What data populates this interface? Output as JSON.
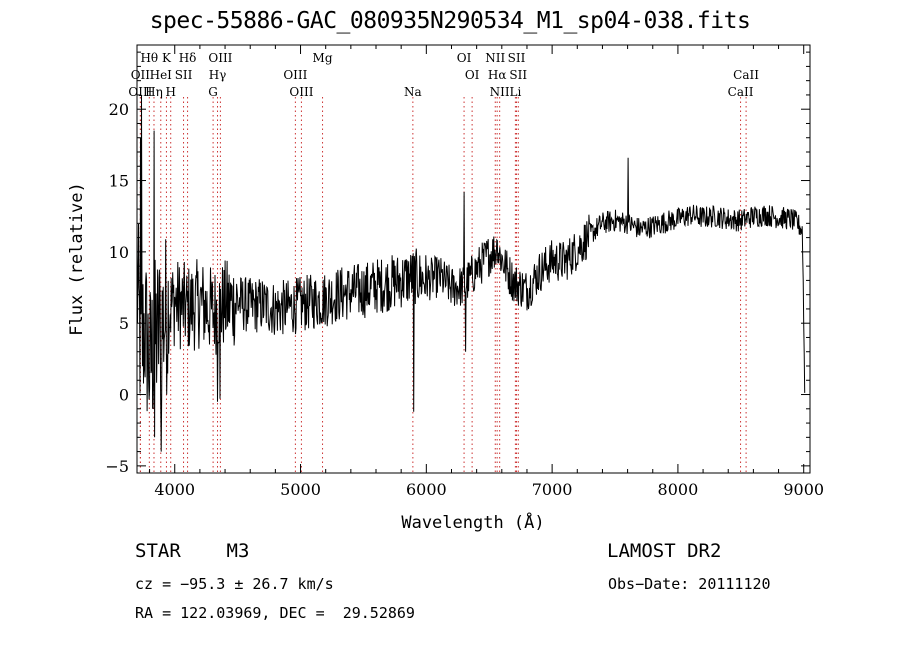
{
  "title": "spec-55886-GAC_080935N290534_M1_sp04-038.fits",
  "chart_data": {
    "type": "line",
    "xlabel": "Wavelength (Å)",
    "ylabel": "Flux (relative)",
    "xlim": [
      3700,
      9050
    ],
    "ylim": [
      -5.5,
      24.5
    ],
    "xticks": [
      4000,
      5000,
      6000,
      7000,
      8000,
      9000
    ],
    "yticks": [
      -5,
      0,
      5,
      10,
      15,
      20
    ],
    "grid": false,
    "anchors": [
      [
        3700,
        8
      ],
      [
        3730,
        3
      ],
      [
        3760,
        5
      ],
      [
        3800,
        2
      ],
      [
        3850,
        4
      ],
      [
        3900,
        5
      ],
      [
        3950,
        6
      ],
      [
        4000,
        6.5
      ],
      [
        4100,
        6
      ],
      [
        4200,
        6.4
      ],
      [
        4300,
        5.8
      ],
      [
        4400,
        6.3
      ],
      [
        4500,
        6.5
      ],
      [
        4600,
        6.2
      ],
      [
        4700,
        6.3
      ],
      [
        4800,
        6
      ],
      [
        4900,
        6.1
      ],
      [
        5000,
        6.3
      ],
      [
        5100,
        6.5
      ],
      [
        5200,
        6.7
      ],
      [
        5300,
        7
      ],
      [
        5400,
        7.2
      ],
      [
        5500,
        7.3
      ],
      [
        5600,
        7.6
      ],
      [
        5700,
        7.8
      ],
      [
        5800,
        8
      ],
      [
        5900,
        8.3
      ],
      [
        6000,
        8
      ],
      [
        6100,
        8.3
      ],
      [
        6200,
        7.5
      ],
      [
        6300,
        7.6
      ],
      [
        6400,
        8.8
      ],
      [
        6500,
        9.8
      ],
      [
        6560,
        10.2
      ],
      [
        6600,
        9.5
      ],
      [
        6650,
        8.6
      ],
      [
        6700,
        7.8
      ],
      [
        6800,
        7.3
      ],
      [
        6900,
        8.6
      ],
      [
        7000,
        9.4
      ],
      [
        7100,
        9.3
      ],
      [
        7200,
        10.2
      ],
      [
        7300,
        11.2
      ],
      [
        7400,
        12
      ],
      [
        7500,
        12.2
      ],
      [
        7600,
        12
      ],
      [
        7700,
        11.6
      ],
      [
        7800,
        11.8
      ],
      [
        7900,
        12.1
      ],
      [
        8000,
        12.3
      ],
      [
        8100,
        12.6
      ],
      [
        8200,
        12.4
      ],
      [
        8300,
        12.5
      ],
      [
        8400,
        12.3
      ],
      [
        8500,
        12.2
      ],
      [
        8600,
        12.5
      ],
      [
        8700,
        12.6
      ],
      [
        8800,
        12.4
      ],
      [
        8900,
        12.3
      ],
      [
        8950,
        12
      ],
      [
        8990,
        11.5
      ],
      [
        9010,
        -1
      ]
    ],
    "features": [
      [
        3728,
        18
      ],
      [
        3734,
        21
      ],
      [
        3836,
        18.5
      ],
      [
        3840,
        -3
      ],
      [
        3890,
        -4
      ],
      [
        4340,
        -0.5
      ],
      [
        4360,
        -0.3
      ],
      [
        5900,
        -1.2
      ],
      [
        6300,
        14.2
      ],
      [
        6310,
        3
      ],
      [
        7605,
        16.6
      ],
      [
        6563,
        10.8
      ]
    ],
    "lines": [
      {
        "name": "Hθ",
        "x": 3798,
        "row": 1
      },
      {
        "name": "K",
        "x": 3934,
        "row": 1
      },
      {
        "name": "Hδ",
        "x": 4102,
        "row": 1
      },
      {
        "name": "OIII",
        "x": 4363,
        "row": 1
      },
      {
        "name": "Mg",
        "x": 5175,
        "row": 1
      },
      {
        "name": "OI",
        "x": 6300,
        "row": 1
      },
      {
        "name": "NII",
        "x": 6548,
        "row": 1
      },
      {
        "name": "SII",
        "x": 6717,
        "row": 1
      },
      {
        "name": "OII",
        "x": 3727,
        "row": 2
      },
      {
        "name": "HeI",
        "x": 3889,
        "row": 2
      },
      {
        "name": "SII",
        "x": 4070,
        "row": 2
      },
      {
        "name": "Hγ",
        "x": 4340,
        "row": 2
      },
      {
        "name": "OIII",
        "x": 4959,
        "row": 2
      },
      {
        "name": "OI",
        "x": 6364,
        "row": 2
      },
      {
        "name": "Hα",
        "x": 6563,
        "row": 2
      },
      {
        "name": "SII",
        "x": 6731,
        "row": 2
      },
      {
        "name": "CaII",
        "x": 8542,
        "row": 2
      },
      {
        "name": "OIII",
        "x": 3727,
        "row": 3
      },
      {
        "name": "Hη",
        "x": 3835,
        "row": 3
      },
      {
        "name": "H",
        "x": 3968,
        "row": 3
      },
      {
        "name": "G",
        "x": 4305,
        "row": 3
      },
      {
        "name": "OIII",
        "x": 5007,
        "row": 3
      },
      {
        "name": "Na",
        "x": 5893,
        "row": 3
      },
      {
        "name": "NII",
        "x": 6583,
        "row": 3
      },
      {
        "name": "Li",
        "x": 6708,
        "row": 3
      },
      {
        "name": "CaII",
        "x": 8498,
        "row": 3
      }
    ]
  },
  "info": {
    "object_class": "STAR    M3",
    "survey": "LAMOST DR2",
    "cz": "cz = −95.3 ± 26.7 km/s",
    "obs_date": "Obs−Date: 20111120",
    "radec": "RA = 122.03969, DEC =  29.52869"
  }
}
